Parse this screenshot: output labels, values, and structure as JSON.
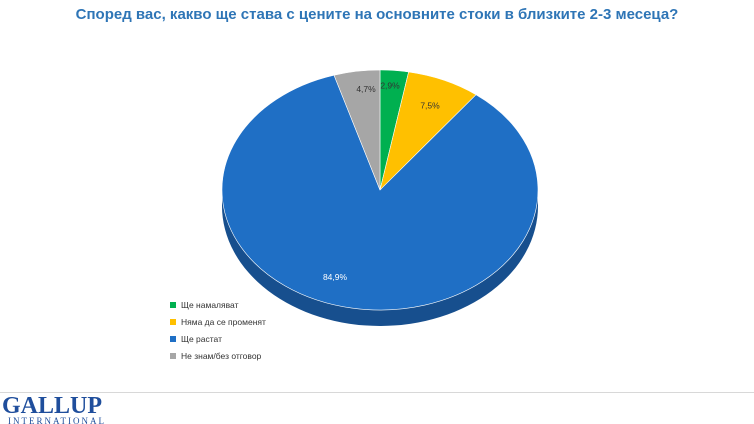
{
  "title": "Според вас, какво ще става с цените на основните стоки в близките 2-3 месеца?",
  "chart_data": {
    "type": "pie",
    "title": "Според вас, какво ще става с цените на основните стоки в близките 2-3 месеца?",
    "categories": [
      "Ще намаляват",
      "Няма да се променят",
      "Ще растат",
      "Не знам/без отговор"
    ],
    "values": [
      2.9,
      7.5,
      84.9,
      4.7
    ],
    "value_labels": [
      "2,9%",
      "7,5%",
      "84,9%",
      "4,7%"
    ],
    "colors": [
      "#00b050",
      "#ffc000",
      "#1f6fc5",
      "#a6a6a6"
    ],
    "side_colors": [
      "#007a38",
      "#bf8f00",
      "#174f8e",
      "#7a7a7a"
    ],
    "legend_position": "bottom-left",
    "style": "3d"
  },
  "legend": {
    "items": [
      {
        "label": "Ще намаляват",
        "color": "#00b050"
      },
      {
        "label": "Няма да се променят",
        "color": "#ffc000"
      },
      {
        "label": "Ще растат",
        "color": "#1f6fc5"
      },
      {
        "label": "Не знам/без отговор",
        "color": "#a6a6a6"
      }
    ]
  },
  "logo": {
    "main": "GALLUP",
    "sub": "INTERNATIONAL"
  }
}
